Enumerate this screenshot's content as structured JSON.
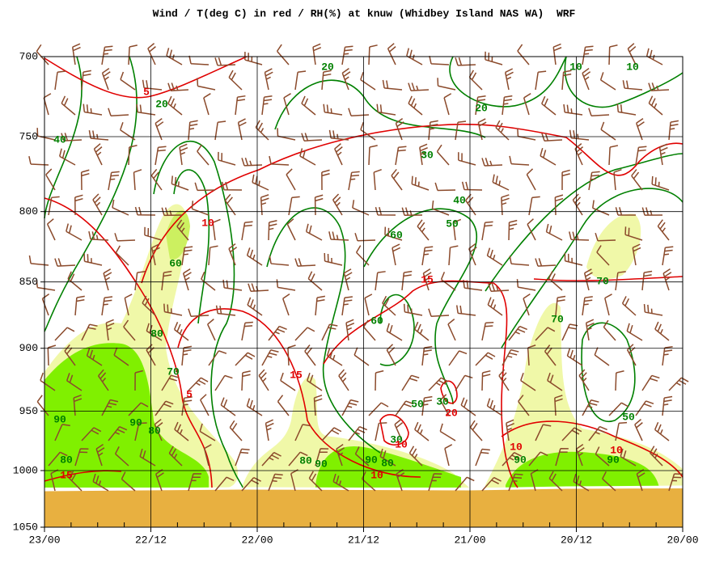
{
  "chart_data": {
    "type": "contour",
    "title": "Wind / T(deg C) in red / RH(%) at knuw (Whidbey Island NAS WA)  WRF",
    "x_labels": [
      "23/00",
      "22/12",
      "22/00",
      "21/12",
      "21/00",
      "20/12",
      "20/00"
    ],
    "ylim": [
      700,
      1050
    ],
    "yticks": [
      700,
      750,
      800,
      850,
      900,
      950,
      1000,
      1050
    ],
    "y_scale": "log",
    "y_inverted": true,
    "grid": true,
    "rh_color": "#008000",
    "temp_color": "#e00000",
    "wind_color": "#8b4a2b",
    "terrain_color": "#e8b040",
    "rh_labels": [
      20,
      10,
      10,
      20,
      40,
      20,
      30,
      40,
      50,
      60,
      60,
      70,
      60,
      70,
      80,
      70,
      50,
      30,
      90,
      90,
      80,
      30,
      80,
      90,
      90,
      80,
      90,
      90,
      80,
      50
    ],
    "temp_labels": [
      5,
      10,
      15,
      15,
      5,
      20,
      10,
      10,
      15,
      10,
      10
    ]
  }
}
